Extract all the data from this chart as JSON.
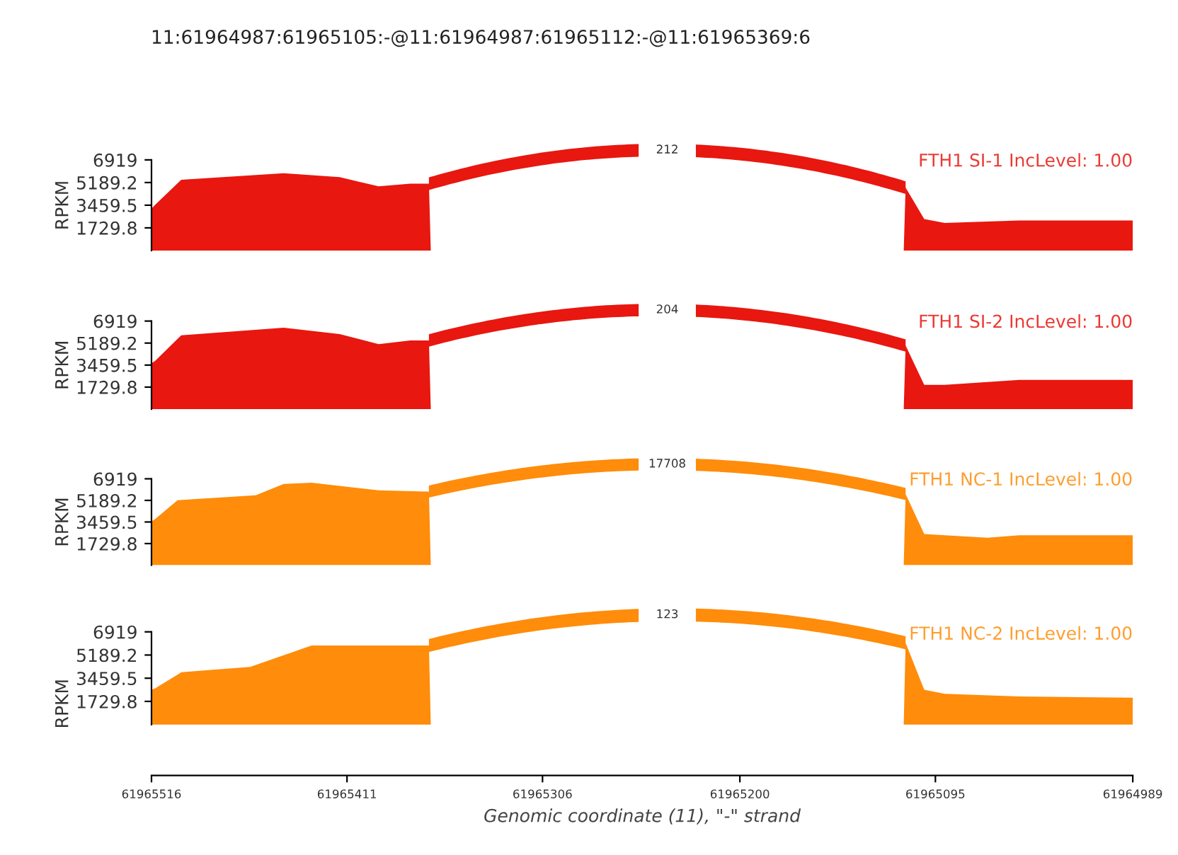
{
  "chart_data": [
    {
      "type": "area",
      "title": "11:61964987:61965105:-@11:61964987:61965112:-@11:61965369:6",
      "ylabel": "RPKM",
      "xlim": [
        61965516,
        61964989
      ],
      "ylim": [
        0,
        6919
      ],
      "yticks": [
        1729.8,
        3459.5,
        5189.2,
        6919
      ],
      "tick_labels": "y",
      "series": [
        {
          "name": "FTH1 SI-1 IncLevel: 1.00",
          "color": "#e8170f",
          "x": [
            61965516,
            61965514,
            61965500,
            61965445,
            61965415,
            61965394,
            61965377,
            61965367,
            61965366,
            61965112,
            61965111,
            61965101,
            61965090,
            61965050,
            61964989
          ],
          "values": [
            3200,
            3500,
            5400,
            5900,
            5600,
            4900,
            5100,
            5100,
            0,
            0,
            4800,
            2400,
            2100,
            2300,
            2300
          ]
        }
      ],
      "annotations": [
        "212"
      ]
    },
    {
      "type": "area",
      "ylabel": "RPKM",
      "xlim": [
        61965516,
        61964989
      ],
      "ylim": [
        0,
        6919
      ],
      "yticks": [
        1729.8,
        3459.5,
        5189.2,
        6919
      ],
      "tick_labels": "y",
      "series": [
        {
          "name": "FTH1 SI-2 IncLevel: 1.00",
          "color": "#e8170f",
          "x": [
            61965516,
            61965514,
            61965500,
            61965445,
            61965415,
            61965394,
            61965377,
            61965367,
            61965366,
            61965112,
            61965111,
            61965101,
            61965090,
            61965050,
            61964989
          ],
          "values": [
            3600,
            3800,
            5800,
            6400,
            5900,
            5100,
            5400,
            5400,
            0,
            0,
            5000,
            1900,
            1900,
            2300,
            2300
          ]
        }
      ],
      "annotations": [
        "204"
      ]
    },
    {
      "type": "area",
      "ylabel": "RPKM",
      "xlim": [
        61965516,
        61964989
      ],
      "ylim": [
        0,
        6919
      ],
      "yticks": [
        1729.8,
        3459.5,
        5189.2,
        6919
      ],
      "tick_labels": "y",
      "series": [
        {
          "name": "FTH1 NC-1 IncLevel: 1.00",
          "color": "#ff8c0a",
          "x": [
            61965516,
            61965514,
            61965502,
            61965460,
            61965445,
            61965430,
            61965394,
            61965369,
            61965367,
            61965366,
            61965112,
            61965111,
            61965101,
            61965090,
            61965067,
            61965050,
            61964989
          ],
          "values": [
            3500,
            3700,
            5200,
            5600,
            6500,
            6600,
            6000,
            5900,
            5900,
            0,
            0,
            5700,
            2500,
            2400,
            2200,
            2400,
            2400
          ]
        }
      ],
      "annotations": [
        "17708"
      ]
    },
    {
      "type": "area",
      "ylabel": "RPKM",
      "xlabel": "Genomic coordinate (11), \"-\" strand",
      "xlim": [
        61965516,
        61964989
      ],
      "ylim": [
        -3800,
        6919
      ],
      "yticks": [
        1729.8,
        3459.5,
        5189.2,
        6919
      ],
      "xticks": [
        61965516,
        61965411,
        61965306,
        61965200,
        61965095,
        61964989
      ],
      "series": [
        {
          "name": "FTH1 NC-2 IncLevel: 1.00",
          "color": "#ff8c0a",
          "x": [
            61965516,
            61965514,
            61965500,
            61965463,
            61965430,
            61965377,
            61965367,
            61965366,
            61965112,
            61965111,
            61965101,
            61965090,
            61965050,
            61964989
          ],
          "values": [
            2600,
            2700,
            3900,
            4300,
            5900,
            5900,
            5900,
            0,
            0,
            6100,
            2600,
            2300,
            2100,
            2000
          ]
        }
      ],
      "annotations": [
        "123"
      ]
    }
  ]
}
